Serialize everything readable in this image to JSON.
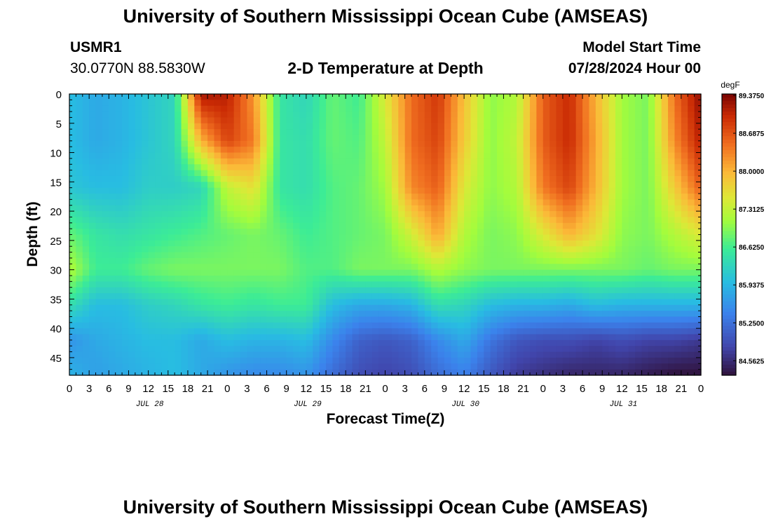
{
  "header": {
    "title": "University of Southern Mississippi Ocean Cube (AMSEAS)",
    "station_id": "USMR1",
    "station_coords": "30.0770N  88.5830W",
    "subtitle": "2-D Temperature at Depth",
    "model_start_label": "Model Start Time",
    "model_start_value": "07/28/2024 Hour 00"
  },
  "footer": {
    "title": "University of Southern Mississippi Ocean Cube (AMSEAS)"
  },
  "chart_data": {
    "type": "heatmap",
    "title": "2-D Temperature at Depth",
    "xlabel": "Forecast Time(Z)",
    "ylabel": "Depth (ft)",
    "x_tick_labels": [
      "0",
      "3",
      "6",
      "9",
      "12",
      "15",
      "18",
      "21",
      "0",
      "3",
      "6",
      "9",
      "12",
      "15",
      "18",
      "21",
      "0",
      "3",
      "6",
      "9",
      "12",
      "15",
      "18",
      "21",
      "0",
      "3",
      "6",
      "9",
      "12",
      "15",
      "18",
      "21",
      "0"
    ],
    "date_labels": [
      "JUL 28",
      "JUL 29",
      "JUL 30",
      "JUL 31"
    ],
    "y_ticks": [
      0,
      5,
      10,
      15,
      20,
      25,
      30,
      35,
      40,
      45
    ],
    "xlim_hours": [
      0,
      96
    ],
    "ylim_ft": [
      0,
      48
    ],
    "colorbar": {
      "units": "degF",
      "vmin": 84.3,
      "vmax": 89.4,
      "labels": [
        "89.3750",
        "88.6875",
        "88.0000",
        "87.3125",
        "86.6250",
        "85.9375",
        "85.2500",
        "84.5625"
      ]
    },
    "temperature_degF": {
      "note": "Values estimated from color (degF). Rows = depth in ft, columns = forecast hour.",
      "depths_ft": [
        0,
        8,
        16,
        24,
        30,
        36,
        42,
        48
      ],
      "hours": [
        0,
        4,
        8,
        12,
        16,
        20,
        24,
        28,
        32,
        36,
        40,
        44,
        48,
        52,
        56,
        60,
        64,
        68,
        72,
        76,
        80,
        84,
        88,
        92,
        96
      ],
      "values": [
        [
          86.0,
          85.8,
          85.9,
          86.1,
          86.3,
          89.2,
          89.1,
          88.2,
          86.5,
          86.3,
          86.8,
          86.6,
          87.5,
          88.5,
          88.9,
          87.9,
          87.0,
          87.2,
          88.6,
          89.0,
          88.0,
          87.1,
          86.9,
          88.5,
          89.3
        ],
        [
          86.0,
          85.8,
          85.9,
          86.1,
          86.3,
          88.0,
          88.8,
          88.4,
          86.5,
          86.4,
          86.8,
          86.7,
          87.3,
          88.5,
          88.8,
          87.8,
          87.0,
          87.3,
          88.6,
          89.0,
          88.1,
          87.1,
          86.9,
          88.3,
          89.1
        ],
        [
          86.1,
          86.0,
          86.0,
          86.2,
          86.2,
          86.3,
          87.3,
          87.6,
          86.5,
          86.4,
          86.7,
          86.8,
          87.1,
          88.3,
          88.6,
          87.5,
          87.0,
          87.2,
          88.4,
          88.8,
          88.0,
          87.1,
          86.9,
          87.8,
          88.6
        ],
        [
          86.8,
          86.5,
          86.4,
          86.5,
          86.6,
          86.7,
          86.8,
          86.9,
          86.8,
          86.6,
          86.7,
          86.8,
          86.9,
          87.4,
          88.1,
          87.2,
          86.9,
          87.0,
          87.5,
          88.0,
          87.6,
          87.0,
          86.9,
          87.2,
          87.5
        ],
        [
          87.2,
          86.6,
          86.6,
          86.8,
          86.9,
          86.9,
          86.9,
          86.9,
          86.9,
          86.7,
          86.7,
          86.9,
          86.9,
          86.9,
          87.2,
          87.0,
          86.9,
          86.9,
          86.9,
          86.9,
          86.9,
          86.9,
          86.8,
          86.9,
          86.9
        ],
        [
          86.4,
          86.0,
          86.0,
          86.2,
          86.3,
          86.5,
          86.6,
          86.5,
          86.6,
          86.6,
          86.0,
          85.8,
          85.8,
          85.9,
          86.4,
          86.3,
          86.0,
          85.9,
          85.9,
          85.8,
          86.0,
          85.9,
          85.9,
          85.9,
          85.9
        ],
        [
          85.6,
          85.8,
          85.9,
          86.0,
          86.0,
          85.8,
          86.0,
          85.9,
          85.9,
          86.0,
          85.5,
          85.1,
          85.0,
          85.1,
          85.5,
          85.8,
          85.3,
          85.0,
          84.9,
          84.9,
          84.8,
          84.9,
          84.8,
          84.8,
          84.7
        ],
        [
          85.9,
          85.7,
          85.8,
          85.9,
          86.0,
          85.8,
          85.6,
          85.5,
          85.5,
          85.6,
          85.2,
          84.9,
          84.8,
          84.9,
          85.2,
          85.4,
          85.0,
          84.7,
          84.6,
          84.5,
          84.5,
          84.5,
          84.4,
          84.3,
          84.3
        ]
      ]
    }
  }
}
